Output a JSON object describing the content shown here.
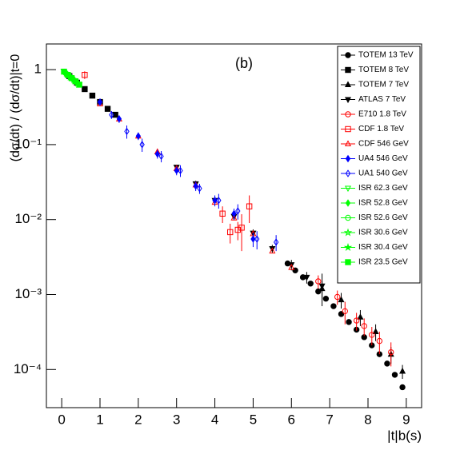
{
  "chart_data": {
    "type": "scatter",
    "annotation": "(b)",
    "xlabel": "|t|b(s)",
    "ylabel": "(dσ/dt) / (dσ/dt)|t=0",
    "log_y": true,
    "legend": "upper right",
    "xlim": [
      -0.4,
      9.4
    ],
    "ylim": [
      3.1e-05,
      2.2
    ],
    "xticks": [
      0,
      1,
      2,
      3,
      4,
      5,
      6,
      7,
      8,
      9
    ],
    "yticks": [
      {
        "value": 1,
        "label": "1"
      },
      {
        "value": 0.1,
        "label": "10⁻¹"
      },
      {
        "value": 0.01,
        "label": "10⁻²"
      },
      {
        "value": 0.001,
        "label": "10⁻³"
      },
      {
        "value": 0.0001,
        "label": "10⁻⁴"
      }
    ],
    "series": [
      {
        "name": "TOTEM 13 TeV",
        "color": "#000000",
        "marker": "circle",
        "filled": true,
        "x": [
          5.9,
          6.1,
          6.3,
          6.5,
          6.7,
          6.9,
          7.1,
          7.3,
          7.5,
          7.7,
          7.9,
          8.1,
          8.3,
          8.5,
          8.7,
          8.9
        ],
        "values": [
          0.0026,
          0.0021,
          0.0017,
          0.0014,
          0.0011,
          0.00088,
          0.0007,
          0.00055,
          0.00043,
          0.00034,
          0.00027,
          0.00021,
          0.00016,
          0.00012,
          8.5e-05,
          5.8e-05
        ]
      },
      {
        "name": "TOTEM 8 TeV",
        "color": "#000000",
        "marker": "square",
        "filled": true,
        "x": [
          0.2,
          0.4,
          0.6,
          0.8,
          1.0,
          1.2,
          1.4
        ],
        "values": [
          0.82,
          0.67,
          0.55,
          0.45,
          0.37,
          0.3,
          0.25
        ]
      },
      {
        "name": "TOTEM 7 TeV",
        "color": "#000000",
        "marker": "triangle-up",
        "filled": true,
        "x": [
          6.8,
          7.3,
          7.8,
          8.2,
          8.6,
          8.9
        ],
        "values": [
          0.0012,
          0.00085,
          0.0005,
          0.00032,
          0.00016,
          9.5e-05
        ],
        "errors": [
          0.0003,
          0.0002,
          0.00012,
          8e-05,
          4e-05,
          2e-05
        ]
      },
      {
        "name": "ATLAS 7 TeV",
        "color": "#000000",
        "marker": "triangle-down",
        "filled": true,
        "x": [
          3.0,
          3.5,
          4.0,
          4.5,
          5.0,
          5.5,
          6.0,
          6.4,
          6.8
        ],
        "values": [
          0.05,
          0.03,
          0.018,
          0.011,
          0.0066,
          0.0041,
          0.0025,
          0.0017,
          0.0013
        ],
        "errors": [
          0.004,
          0.003,
          0.002,
          0.0012,
          0.0008,
          0.0005,
          0.0004,
          0.0003,
          0.0006
        ]
      },
      {
        "name": "E710 1.8 TeV",
        "color": "#ff0000",
        "marker": "circle",
        "filled": false,
        "x": [
          6.7,
          7.2,
          7.4,
          7.7,
          7.9,
          8.1,
          8.3,
          8.6
        ],
        "values": [
          0.0015,
          0.00093,
          0.0006,
          0.00045,
          0.00038,
          0.00029,
          0.00024,
          0.00017
        ],
        "errors": [
          0.0003,
          0.0002,
          0.0002,
          0.00012,
          0.0001,
          8e-05,
          8e-05,
          6e-05
        ]
      },
      {
        "name": "CDF 1.8 TeV",
        "color": "#ff0000",
        "marker": "square",
        "filled": false,
        "x": [
          0.6,
          4.2,
          4.4,
          4.6,
          4.7,
          4.9
        ],
        "values": [
          0.85,
          0.012,
          0.0068,
          0.0073,
          0.0078,
          0.015
        ],
        "errors": [
          0.1,
          0.003,
          0.002,
          0.002,
          0.004,
          0.006
        ]
      },
      {
        "name": "CDF 546 GeV",
        "color": "#ff0000",
        "marker": "triangle-up",
        "filled": false,
        "x": [
          1.0,
          1.5,
          2.0,
          2.5,
          3.0,
          3.5,
          4.0,
          4.5,
          5.0,
          5.5,
          6.0
        ],
        "values": [
          0.35,
          0.22,
          0.13,
          0.08,
          0.048,
          0.029,
          0.017,
          0.0105,
          0.0065,
          0.0038,
          0.0023
        ]
      },
      {
        "name": "UA4 546 GeV",
        "color": "#0000ff",
        "marker": "diamond",
        "filled": true,
        "x": [
          1.0,
          1.5,
          2.0,
          2.5,
          3.0,
          3.5,
          4.0,
          4.5,
          5.0
        ],
        "values": [
          0.37,
          0.22,
          0.13,
          0.075,
          0.045,
          0.028,
          0.018,
          0.012,
          0.0055
        ],
        "errors": [
          0.04,
          0.025,
          0.015,
          0.01,
          0.006,
          0.004,
          0.003,
          0.002,
          0.0012
        ]
      },
      {
        "name": "UA1 540 GeV",
        "color": "#0000ff",
        "marker": "diamond",
        "filled": false,
        "x": [
          1.3,
          1.7,
          2.1,
          2.6,
          3.1,
          3.6,
          4.1,
          4.6,
          5.1,
          5.6
        ],
        "values": [
          0.25,
          0.15,
          0.1,
          0.07,
          0.045,
          0.026,
          0.018,
          0.013,
          0.0055,
          0.005
        ],
        "errors": [
          0.03,
          0.03,
          0.02,
          0.012,
          0.008,
          0.004,
          0.004,
          0.003,
          0.0015,
          0.0012
        ]
      },
      {
        "name": "ISR 62.3 GeV",
        "color": "#00ff00",
        "marker": "triangle-down",
        "filled": false,
        "x": [
          0.05,
          0.15,
          0.25,
          0.35
        ],
        "values": [
          0.95,
          0.86,
          0.78,
          0.7
        ]
      },
      {
        "name": "ISR 52.8 GeV",
        "color": "#00ff00",
        "marker": "diamond",
        "filled": true,
        "x": [
          0.08,
          0.18,
          0.28,
          0.38
        ],
        "values": [
          0.92,
          0.84,
          0.76,
          0.69
        ]
      },
      {
        "name": "ISR 52.6 GeV",
        "color": "#00ff00",
        "marker": "circle",
        "filled": false,
        "x": [
          0.1,
          0.2,
          0.3,
          0.4
        ],
        "values": [
          0.9,
          0.82,
          0.74,
          0.67
        ]
      },
      {
        "name": "ISR 30.6 GeV",
        "color": "#00ff00",
        "marker": "star",
        "filled": false,
        "x": [
          0.12,
          0.22,
          0.32,
          0.42
        ],
        "values": [
          0.89,
          0.8,
          0.73,
          0.66
        ]
      },
      {
        "name": "ISR 30.4 GeV",
        "color": "#00ff00",
        "marker": "star",
        "filled": true,
        "x": [
          0.14,
          0.24,
          0.34,
          0.44
        ],
        "values": [
          0.87,
          0.79,
          0.71,
          0.64
        ]
      },
      {
        "name": "ISR 23.5 GeV",
        "color": "#00ff00",
        "marker": "square",
        "filled": true,
        "x": [
          0.06,
          0.16,
          0.26,
          0.36,
          0.46
        ],
        "values": [
          0.94,
          0.85,
          0.77,
          0.7,
          0.63
        ]
      }
    ]
  }
}
